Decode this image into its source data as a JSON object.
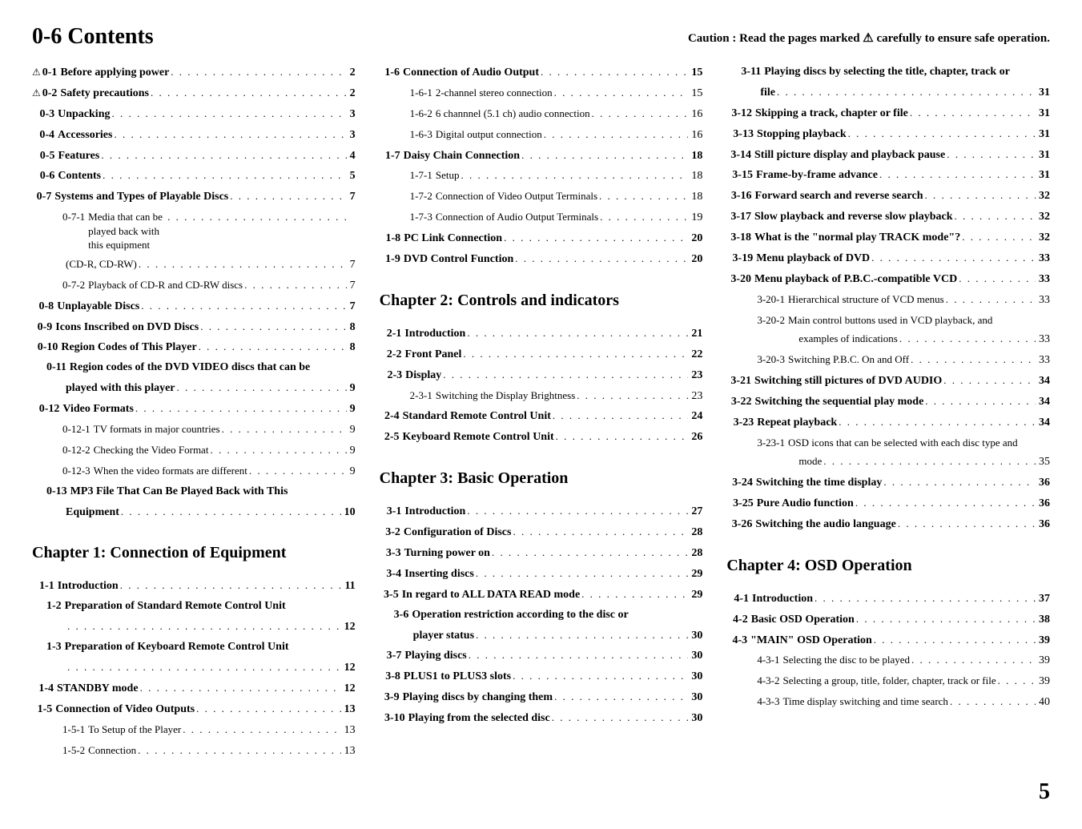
{
  "title_prefix": "0-6",
  "title_text": "Contents",
  "caution_text": "Caution : Read the pages marked  ⚠  carefully to ensure safe operation.",
  "page_number": "5",
  "col1": [
    {
      "type": "entry",
      "bold": true,
      "warn": true,
      "num": "0-1",
      "label": "Before applying power",
      "page": "2"
    },
    {
      "type": "entry",
      "bold": true,
      "warn": true,
      "num": "0-2",
      "label": "Safety precautions",
      "page": "2"
    },
    {
      "type": "entry",
      "bold": true,
      "num": "0-3",
      "label": "Unpacking",
      "page": "3"
    },
    {
      "type": "entry",
      "bold": true,
      "num": "0-4",
      "label": "Accessories",
      "page": "3"
    },
    {
      "type": "entry",
      "bold": true,
      "num": "0-5",
      "label": "Features",
      "page": "4"
    },
    {
      "type": "entry",
      "bold": true,
      "num": "0-6",
      "label": "Contents",
      "page": "5"
    },
    {
      "type": "entry",
      "bold": true,
      "num": "0-7",
      "label": "Systems and Types of Playable Discs",
      "page": "7"
    },
    {
      "type": "entry",
      "sub": true,
      "num": "0-7-1",
      "label": "Media that can be played back with this equipment",
      "wrap": true,
      "page": ""
    },
    {
      "type": "entry",
      "sub": true,
      "num": "",
      "label": "(CD-R, CD-RW)",
      "page": "7"
    },
    {
      "type": "entry",
      "sub": true,
      "num": "0-7-2",
      "label": "Playback of CD-R and CD-RW discs",
      "page": "7"
    },
    {
      "type": "entry",
      "bold": true,
      "num": "0-8",
      "label": "Unplayable Discs",
      "page": "7"
    },
    {
      "type": "entry",
      "bold": true,
      "num": "0-9",
      "label": "Icons Inscribed on DVD Discs",
      "page": "8"
    },
    {
      "type": "entry",
      "bold": true,
      "num": "0-10",
      "label": "Region Codes of This Player",
      "page": "8"
    },
    {
      "type": "entry",
      "bold": true,
      "num": "0-11",
      "label": "Region codes of the DVD VIDEO discs that can be",
      "wrap": true,
      "nopg": true
    },
    {
      "type": "entry",
      "bold": true,
      "num": "",
      "label": "played with this player",
      "indent": 38,
      "page": "9"
    },
    {
      "type": "entry",
      "bold": true,
      "num": "0-12",
      "label": "Video Formats",
      "page": "9"
    },
    {
      "type": "entry",
      "sub": true,
      "num": "0-12-1",
      "label": "TV formats in major countries",
      "page": "9"
    },
    {
      "type": "entry",
      "sub": true,
      "num": "0-12-2",
      "label": "Checking the Video Format",
      "page": "9"
    },
    {
      "type": "entry",
      "sub": true,
      "num": "0-12-3",
      "label": "When the video formats are different",
      "page": "9"
    },
    {
      "type": "entry",
      "bold": true,
      "num": "0-13",
      "label": "MP3 File That Can Be Played Back with This",
      "wrap": true,
      "nopg": true
    },
    {
      "type": "entry",
      "bold": true,
      "num": "",
      "label": "Equipment",
      "indent": 38,
      "page": "10"
    },
    {
      "type": "chapter",
      "label": "Chapter 1: Connection of Equipment"
    },
    {
      "type": "entry",
      "bold": true,
      "num": "1-1",
      "label": "Introduction",
      "page": "11"
    },
    {
      "type": "entry",
      "bold": true,
      "num": "1-2",
      "label": "Preparation of Standard Remote Control Unit",
      "wrap": true,
      "nopg": true
    },
    {
      "type": "entry",
      "bold": true,
      "num": "",
      "label": "",
      "indent": 38,
      "page": "12"
    },
    {
      "type": "entry",
      "bold": true,
      "num": "1-3",
      "label": "Preparation of Keyboard Remote Control Unit",
      "wrap": true,
      "nopg": true
    },
    {
      "type": "entry",
      "bold": true,
      "num": "",
      "label": "",
      "indent": 38,
      "page": "12"
    },
    {
      "type": "entry",
      "bold": true,
      "num": "1-4",
      "label": "STANDBY mode",
      "page": "12"
    },
    {
      "type": "entry",
      "bold": true,
      "num": "1-5",
      "label": "Connection of Video Outputs",
      "page": "13"
    },
    {
      "type": "entry",
      "sub": true,
      "num": "1-5-1",
      "label": "To Setup of the Player",
      "page": "13"
    },
    {
      "type": "entry",
      "sub": true,
      "num": "1-5-2",
      "label": "Connection",
      "page": "13"
    }
  ],
  "col2": [
    {
      "type": "entry",
      "bold": true,
      "num": "1-6",
      "label": "Connection of Audio Output",
      "page": "15"
    },
    {
      "type": "entry",
      "sub": true,
      "num": "1-6-1",
      "label": "2-channel stereo connection",
      "page": "15"
    },
    {
      "type": "entry",
      "sub": true,
      "num": "1-6-2",
      "label": "6 channnel (5.1 ch) audio connection",
      "page": "16"
    },
    {
      "type": "entry",
      "sub": true,
      "num": "1-6-3",
      "label": "Digital output connection",
      "page": "16"
    },
    {
      "type": "entry",
      "bold": true,
      "num": "1-7",
      "label": "Daisy Chain Connection",
      "page": "18"
    },
    {
      "type": "entry",
      "sub": true,
      "num": "1-7-1",
      "label": "Setup",
      "page": "18"
    },
    {
      "type": "entry",
      "sub": true,
      "num": "1-7-2",
      "label": "Connection of Video Output Terminals",
      "page": "18"
    },
    {
      "type": "entry",
      "sub": true,
      "num": "1-7-3",
      "label": "Connection of Audio Output Terminals",
      "page": "19"
    },
    {
      "type": "entry",
      "bold": true,
      "num": "1-8",
      "label": "PC Link Connection",
      "page": "20"
    },
    {
      "type": "entry",
      "bold": true,
      "num": "1-9",
      "label": "DVD Control Function",
      "page": "20"
    },
    {
      "type": "chapter",
      "label": "Chapter 2: Controls and indicators"
    },
    {
      "type": "entry",
      "bold": true,
      "num": "2-1",
      "label": "Introduction",
      "page": "21"
    },
    {
      "type": "entry",
      "bold": true,
      "num": "2-2",
      "label": "Front Panel",
      "page": "22"
    },
    {
      "type": "entry",
      "bold": true,
      "num": "2-3",
      "label": "Display",
      "page": "23"
    },
    {
      "type": "entry",
      "sub": true,
      "num": "2-3-1",
      "label": "Switching the Display Brightness",
      "page": "23"
    },
    {
      "type": "entry",
      "bold": true,
      "num": "2-4",
      "label": "Standard Remote Control Unit",
      "page": "24"
    },
    {
      "type": "entry",
      "bold": true,
      "num": "2-5",
      "label": "Keyboard Remote Control Unit",
      "page": "26"
    },
    {
      "type": "chapter",
      "label": "Chapter 3: Basic Operation"
    },
    {
      "type": "entry",
      "bold": true,
      "num": "3-1",
      "label": "Introduction",
      "page": "27"
    },
    {
      "type": "entry",
      "bold": true,
      "num": "3-2",
      "label": "Configuration of Discs",
      "page": "28"
    },
    {
      "type": "entry",
      "bold": true,
      "num": "3-3",
      "label": "Turning power on",
      "page": "28"
    },
    {
      "type": "entry",
      "bold": true,
      "num": "3-4",
      "label": "Inserting discs",
      "page": "29"
    },
    {
      "type": "entry",
      "bold": true,
      "num": "3-5",
      "label": "In regard to ALL DATA READ mode",
      "page": "29"
    },
    {
      "type": "entry",
      "bold": true,
      "num": "3-6",
      "label": "Operation restriction according to the disc or",
      "wrap": true,
      "nopg": true
    },
    {
      "type": "entry",
      "bold": true,
      "num": "",
      "label": "player status",
      "indent": 38,
      "page": "30"
    },
    {
      "type": "entry",
      "bold": true,
      "num": "3-7",
      "label": "Playing discs",
      "page": "30"
    },
    {
      "type": "entry",
      "bold": true,
      "num": "3-8",
      "label": "PLUS1 to PLUS3 slots",
      "page": "30"
    },
    {
      "type": "entry",
      "bold": true,
      "num": "3-9",
      "label": "Playing discs by changing them",
      "page": "30"
    },
    {
      "type": "entry",
      "bold": true,
      "num": "3-10",
      "label": "Playing from the selected disc",
      "page": "30"
    }
  ],
  "col3": [
    {
      "type": "entry",
      "bold": true,
      "num": "3-11",
      "label": "Playing discs by selecting the title, chapter, track or",
      "wrap": true,
      "nopg": true
    },
    {
      "type": "entry",
      "bold": true,
      "num": "",
      "label": "file",
      "indent": 38,
      "page": "31"
    },
    {
      "type": "entry",
      "bold": true,
      "num": "3-12",
      "label": "Skipping a track, chapter or file",
      "page": "31"
    },
    {
      "type": "entry",
      "bold": true,
      "num": "3-13",
      "label": "Stopping playback",
      "page": "31"
    },
    {
      "type": "entry",
      "bold": true,
      "num": "3-14",
      "label": "Still picture display and playback pause",
      "page": "31"
    },
    {
      "type": "entry",
      "bold": true,
      "num": "3-15",
      "label": "Frame-by-frame advance",
      "page": "31"
    },
    {
      "type": "entry",
      "bold": true,
      "num": "3-16",
      "label": "Forward search and reverse search",
      "page": "32"
    },
    {
      "type": "entry",
      "bold": true,
      "num": "3-17",
      "label": "Slow playback and reverse slow playback",
      "page": "32"
    },
    {
      "type": "entry",
      "bold": true,
      "num": "3-18",
      "label": "What is the \"normal play TRACK mode\"?",
      "page": "32"
    },
    {
      "type": "entry",
      "bold": true,
      "num": "3-19",
      "label": "Menu playback of DVD",
      "page": "33"
    },
    {
      "type": "entry",
      "bold": true,
      "num": "3-20",
      "label": "Menu playback of P.B.C.-compatible VCD",
      "page": "33"
    },
    {
      "type": "entry",
      "sub": true,
      "num": "3-20-1",
      "label": "Hierarchical structure of VCD menus",
      "page": "33"
    },
    {
      "type": "entry",
      "sub": true,
      "num": "3-20-2",
      "label": "Main control buttons used in VCD playback, and",
      "wrap": true,
      "nopg": true
    },
    {
      "type": "entry",
      "sub": true,
      "num": "",
      "label": "examples of indications",
      "indent": 86,
      "page": "33"
    },
    {
      "type": "entry",
      "sub": true,
      "num": "3-20-3",
      "label": "Switching P.B.C. On and Off",
      "page": "33"
    },
    {
      "type": "entry",
      "bold": true,
      "num": "3-21",
      "label": "Switching still pictures of DVD AUDIO",
      "page": "34"
    },
    {
      "type": "entry",
      "bold": true,
      "num": "3-22",
      "label": "Switching the sequential play mode",
      "page": "34"
    },
    {
      "type": "entry",
      "bold": true,
      "num": "3-23",
      "label": "Repeat playback",
      "page": "34"
    },
    {
      "type": "entry",
      "sub": true,
      "num": "3-23-1",
      "label": "OSD icons that can be selected with each disc type and",
      "wrap": true,
      "nopg": true
    },
    {
      "type": "entry",
      "sub": true,
      "num": "",
      "label": "mode",
      "indent": 86,
      "page": "35"
    },
    {
      "type": "entry",
      "bold": true,
      "num": "3-24",
      "label": "Switching the time display",
      "page": "36"
    },
    {
      "type": "entry",
      "bold": true,
      "num": "3-25",
      "label": "Pure Audio function",
      "page": "36"
    },
    {
      "type": "entry",
      "bold": true,
      "num": "3-26",
      "label": "Switching the audio language",
      "page": "36"
    },
    {
      "type": "chapter",
      "label": "Chapter 4: OSD Operation"
    },
    {
      "type": "entry",
      "bold": true,
      "num": "4-1",
      "label": "Introduction",
      "page": "37"
    },
    {
      "type": "entry",
      "bold": true,
      "num": "4-2",
      "label": "Basic OSD Operation",
      "page": "38"
    },
    {
      "type": "entry",
      "bold": true,
      "num": "4-3",
      "label": "\"MAIN\" OSD Operation",
      "page": "39"
    },
    {
      "type": "entry",
      "sub": true,
      "num": "4-3-1",
      "label": "Selecting the disc to be played",
      "page": "39"
    },
    {
      "type": "entry",
      "sub": true,
      "num": "4-3-2",
      "label": "Selecting a group, title, folder, chapter, track or file",
      "page": "39"
    },
    {
      "type": "entry",
      "sub": true,
      "num": "4-3-3",
      "label": "Time display switching and time search",
      "page": "40"
    }
  ]
}
